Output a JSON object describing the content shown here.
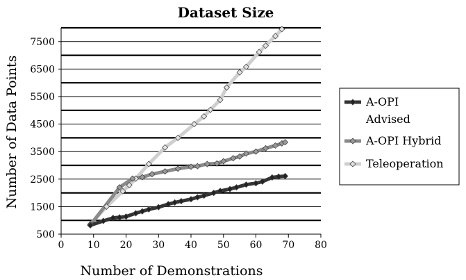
{
  "chart_data": {
    "type": "line",
    "title": "Dataset Size",
    "xlabel": "Number of Demonstrations",
    "ylabel": "Number of Data Points",
    "xlim": [
      0,
      80
    ],
    "ylim": [
      500,
      8000
    ],
    "xticks": [
      0,
      10,
      20,
      30,
      40,
      50,
      60,
      70,
      80
    ],
    "yticks": [
      500,
      1500,
      2500,
      3500,
      4500,
      5500,
      6500,
      7500
    ],
    "grid": "horizontal",
    "legend_position": "right",
    "series": [
      {
        "name": "A-OPI Advised",
        "color": "#333333",
        "marker_fill": "#222222",
        "points": [
          [
            9,
            820
          ],
          [
            13,
            980
          ],
          [
            16,
            1090
          ],
          [
            18,
            1110
          ],
          [
            20,
            1140
          ],
          [
            23,
            1260
          ],
          [
            25,
            1330
          ],
          [
            27,
            1400
          ],
          [
            30,
            1480
          ],
          [
            33,
            1590
          ],
          [
            35,
            1650
          ],
          [
            37,
            1700
          ],
          [
            40,
            1770
          ],
          [
            42,
            1840
          ],
          [
            44,
            1900
          ],
          [
            47,
            2000
          ],
          [
            49,
            2070
          ],
          [
            52,
            2140
          ],
          [
            54,
            2200
          ],
          [
            57,
            2300
          ],
          [
            60,
            2350
          ],
          [
            62,
            2410
          ],
          [
            65,
            2560
          ],
          [
            67,
            2590
          ],
          [
            69,
            2610
          ]
        ]
      },
      {
        "name": "A-OPI Hybrid",
        "color": "#8a8a8a",
        "marker_fill": "#999999",
        "points": [
          [
            9,
            830
          ],
          [
            18,
            2200
          ],
          [
            22,
            2520
          ],
          [
            25,
            2570
          ],
          [
            28,
            2680
          ],
          [
            32,
            2780
          ],
          [
            36,
            2880
          ],
          [
            40,
            2950
          ],
          [
            42,
            2970
          ],
          [
            45,
            3050
          ],
          [
            48,
            3070
          ],
          [
            50,
            3150
          ],
          [
            53,
            3260
          ],
          [
            55,
            3320
          ],
          [
            57,
            3430
          ],
          [
            60,
            3500
          ],
          [
            63,
            3620
          ],
          [
            66,
            3720
          ],
          [
            68,
            3800
          ],
          [
            69,
            3840
          ]
        ]
      },
      {
        "name": "Teleoperation",
        "color": "#cfcfcf",
        "marker_fill": "#e2e2e2",
        "points": [
          [
            9,
            860
          ],
          [
            14,
            1500
          ],
          [
            19,
            2060
          ],
          [
            21,
            2280
          ],
          [
            23,
            2520
          ],
          [
            27,
            3050
          ],
          [
            32,
            3650
          ],
          [
            36,
            4000
          ],
          [
            41,
            4500
          ],
          [
            44,
            4780
          ],
          [
            46,
            5020
          ],
          [
            49,
            5380
          ],
          [
            51,
            5830
          ],
          [
            55,
            6380
          ],
          [
            57,
            6580
          ],
          [
            61,
            7120
          ],
          [
            63,
            7350
          ],
          [
            66,
            7700
          ],
          [
            68,
            7950
          ]
        ]
      }
    ]
  }
}
